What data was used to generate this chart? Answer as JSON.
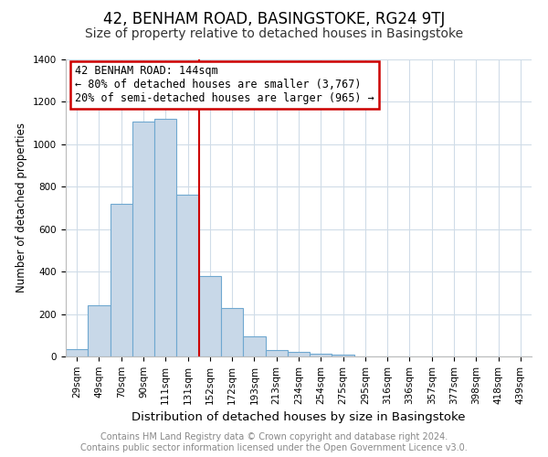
{
  "title": "42, BENHAM ROAD, BASINGSTOKE, RG24 9TJ",
  "subtitle": "Size of property relative to detached houses in Basingstoke",
  "xlabel": "Distribution of detached houses by size in Basingstoke",
  "ylabel": "Number of detached properties",
  "bar_labels": [
    "29sqm",
    "49sqm",
    "70sqm",
    "90sqm",
    "111sqm",
    "131sqm",
    "152sqm",
    "172sqm",
    "193sqm",
    "213sqm",
    "234sqm",
    "254sqm",
    "275sqm",
    "295sqm",
    "316sqm",
    "336sqm",
    "357sqm",
    "377sqm",
    "398sqm",
    "418sqm",
    "439sqm"
  ],
  "bar_heights": [
    35,
    242,
    718,
    1107,
    1120,
    762,
    381,
    230,
    93,
    30,
    20,
    15,
    8,
    0,
    0,
    0,
    0,
    0,
    0,
    0,
    0
  ],
  "bar_color": "#c8d8e8",
  "bar_edge_color": "#6fa8d0",
  "vline_x": 5.5,
  "vline_color": "#cc0000",
  "annotation_title": "42 BENHAM ROAD: 144sqm",
  "annotation_line1": "← 80% of detached houses are smaller (3,767)",
  "annotation_line2": "20% of semi-detached houses are larger (965) →",
  "annotation_box_color": "#ffffff",
  "annotation_box_edge_color": "#cc0000",
  "ylim": [
    0,
    1400
  ],
  "yticks": [
    0,
    200,
    400,
    600,
    800,
    1000,
    1200,
    1400
  ],
  "footer_line1": "Contains HM Land Registry data © Crown copyright and database right 2024.",
  "footer_line2": "Contains public sector information licensed under the Open Government Licence v3.0.",
  "background_color": "#ffffff",
  "grid_color": "#d0dce8",
  "title_fontsize": 12,
  "subtitle_fontsize": 10,
  "xlabel_fontsize": 9.5,
  "ylabel_fontsize": 8.5,
  "footer_fontsize": 7,
  "tick_fontsize": 7.5,
  "annot_fontsize": 8.5
}
